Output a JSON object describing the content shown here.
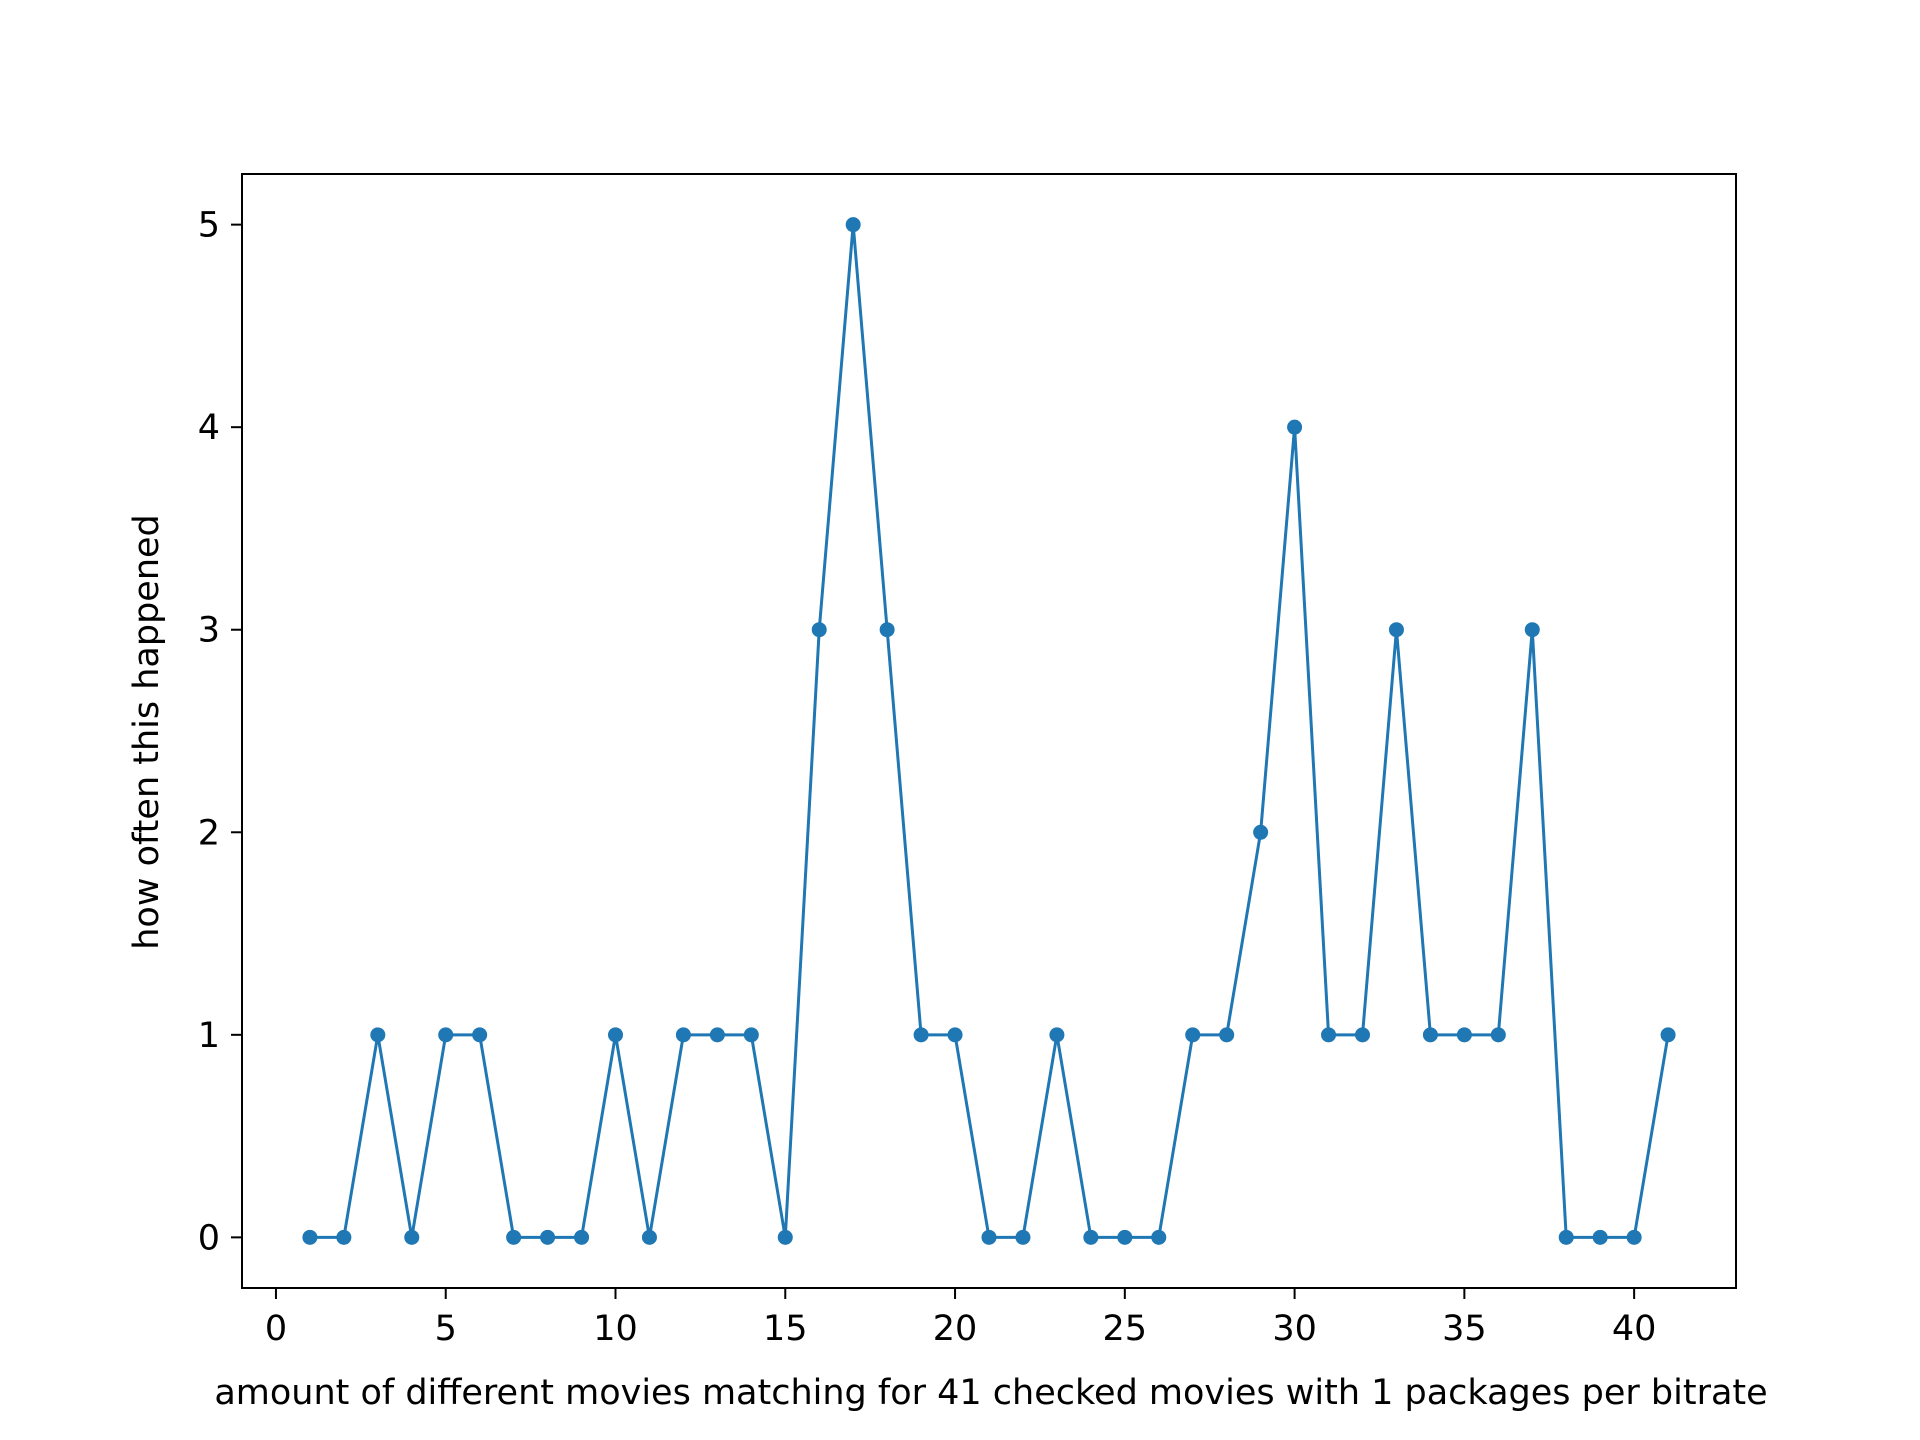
{
  "chart_data": {
    "type": "line",
    "title": "",
    "xlabel": "amount of different movies matching for 41 checked movies with 1 packages per bitrate",
    "ylabel": "how often this happened",
    "xlim": [
      -1,
      43
    ],
    "ylim": [
      -0.25,
      5.25
    ],
    "xticks": [
      0,
      5,
      10,
      15,
      20,
      25,
      30,
      35,
      40
    ],
    "yticks": [
      0,
      1,
      2,
      3,
      4,
      5
    ],
    "grid": false,
    "legend": "none",
    "series": [
      {
        "color": "#1f77b4",
        "marker": "circle",
        "x": [
          1,
          2,
          3,
          4,
          5,
          6,
          7,
          8,
          9,
          10,
          11,
          12,
          13,
          14,
          15,
          16,
          17,
          18,
          19,
          20,
          21,
          22,
          23,
          24,
          25,
          26,
          27,
          28,
          29,
          30,
          31,
          32,
          33,
          34,
          35,
          36,
          37,
          38,
          39,
          40,
          41
        ],
        "y": [
          0,
          0,
          1,
          0,
          1,
          1,
          0,
          0,
          0,
          1,
          0,
          1,
          1,
          1,
          0,
          3,
          5,
          3,
          1,
          1,
          0,
          0,
          1,
          0,
          0,
          0,
          1,
          1,
          2,
          4,
          1,
          1,
          3,
          1,
          1,
          1,
          3,
          0,
          0,
          0,
          1
        ]
      }
    ]
  }
}
